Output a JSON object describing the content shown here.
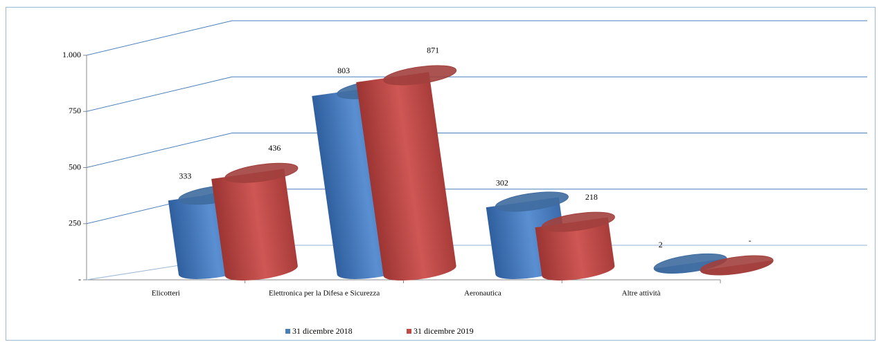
{
  "chart_data": {
    "type": "bar3d",
    "categories": [
      "Elicotteri",
      "Elettronica per la Difesa e Sicurezza",
      "Aeronautica",
      "Altre attività"
    ],
    "series": [
      {
        "name": "31 dicembre 2018",
        "color": "#4a7ebb",
        "values": [
          333,
          803,
          302,
          2
        ]
      },
      {
        "name": "31 dicembre 2019",
        "color": "#be4b48",
        "values": [
          436,
          871,
          218,
          0
        ],
        "value_labels": [
          "436",
          "871",
          "218",
          "-"
        ]
      }
    ],
    "ylim": [
      0,
      1000
    ],
    "yticks": [
      {
        "value": 0,
        "label": "-"
      },
      250,
      500,
      750,
      {
        "value": 1000,
        "label": "1.000"
      }
    ],
    "grid": true,
    "legend": "bottom"
  }
}
